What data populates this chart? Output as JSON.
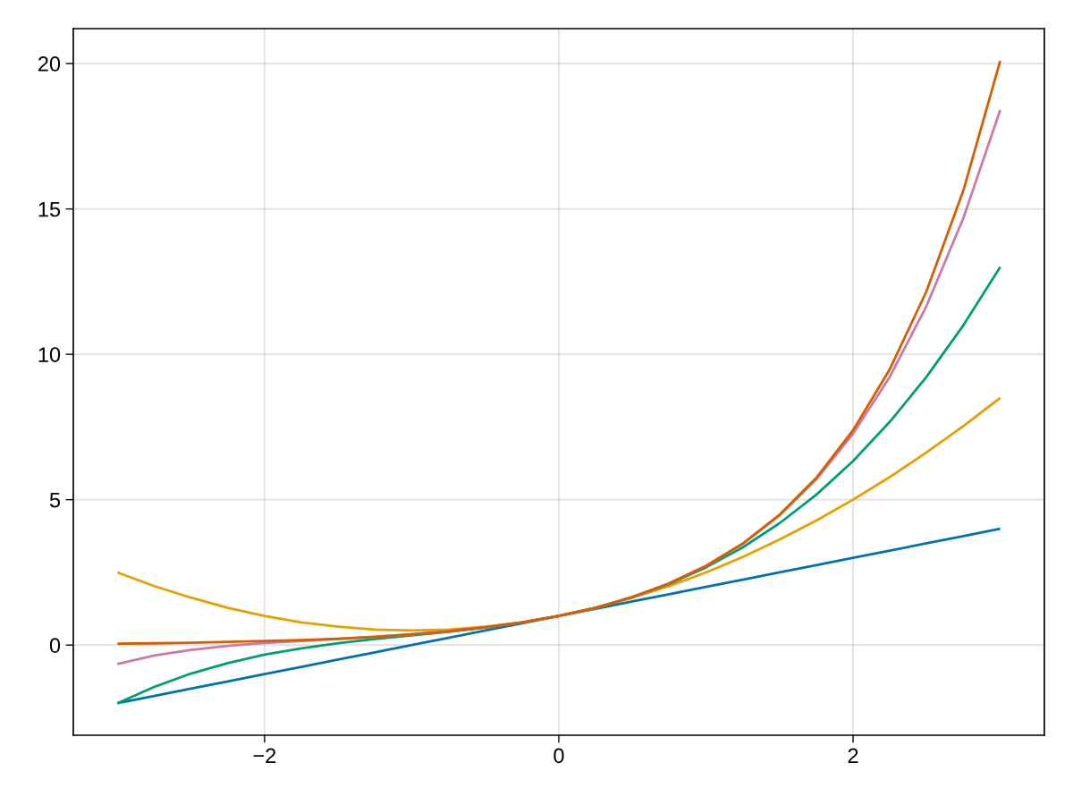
{
  "chart_data": {
    "type": "line",
    "x": [
      -3,
      -2.75,
      -2.5,
      -2.25,
      -2,
      -1.75,
      -1.5,
      -1.25,
      -1,
      -0.75,
      -0.5,
      -0.25,
      0,
      0.25,
      0.5,
      0.75,
      1,
      1.25,
      1.5,
      1.75,
      2,
      2.25,
      2.5,
      2.75,
      3
    ],
    "series": [
      {
        "color": "#0072b2",
        "values": [
          -2,
          -1.75,
          -1.5,
          -1.25,
          -1,
          -0.75,
          -0.5,
          -0.25,
          0,
          0.25,
          0.5,
          0.75,
          1,
          1.25,
          1.5,
          1.75,
          2,
          2.25,
          2.5,
          2.75,
          3,
          3.25,
          3.5,
          3.75,
          4
        ]
      },
      {
        "color": "#e69f00",
        "values": [
          2.5,
          2.03,
          1.63,
          1.28,
          1,
          0.78,
          0.63,
          0.53,
          0.5,
          0.53,
          0.63,
          0.78,
          1,
          1.28,
          1.63,
          2.03,
          2.5,
          3.03,
          3.63,
          4.28,
          5,
          5.78,
          6.63,
          7.53,
          8.5
        ]
      },
      {
        "color": "#009e73",
        "values": [
          -2,
          -1.44,
          -0.98,
          -0.62,
          -0.33,
          -0.11,
          0.06,
          0.21,
          0.33,
          0.46,
          0.6,
          0.78,
          1,
          1.28,
          1.65,
          2.1,
          2.67,
          3.36,
          4.19,
          5.17,
          6.33,
          7.68,
          9.23,
          11.0,
          13
        ]
      },
      {
        "color": "#cc79a7",
        "values": [
          -0.65,
          -0.36,
          -0.17,
          -0.03,
          0.07,
          0.14,
          0.21,
          0.28,
          0.37,
          0.47,
          0.61,
          0.78,
          1,
          1.28,
          1.65,
          2.12,
          2.72,
          3.48,
          4.46,
          5.7,
          7.27,
          9.23,
          11.67,
          14.69,
          18.4
        ]
      },
      {
        "color": "#d55e00",
        "values": [
          0.05,
          0.06,
          0.08,
          0.11,
          0.14,
          0.17,
          0.22,
          0.29,
          0.37,
          0.47,
          0.61,
          0.78,
          1,
          1.28,
          1.65,
          2.12,
          2.72,
          3.49,
          4.48,
          5.75,
          7.39,
          9.49,
          12.18,
          15.64,
          20.09
        ]
      }
    ],
    "xlim": [
      -3.3,
      3.3
    ],
    "ylim": [
      -3.1,
      21.2
    ],
    "xticks": [
      {
        "value": -2,
        "label": "−2"
      },
      0,
      2
    ],
    "yticks": [
      0,
      5,
      10,
      15,
      20
    ],
    "grid": true,
    "line_style": "solid"
  }
}
